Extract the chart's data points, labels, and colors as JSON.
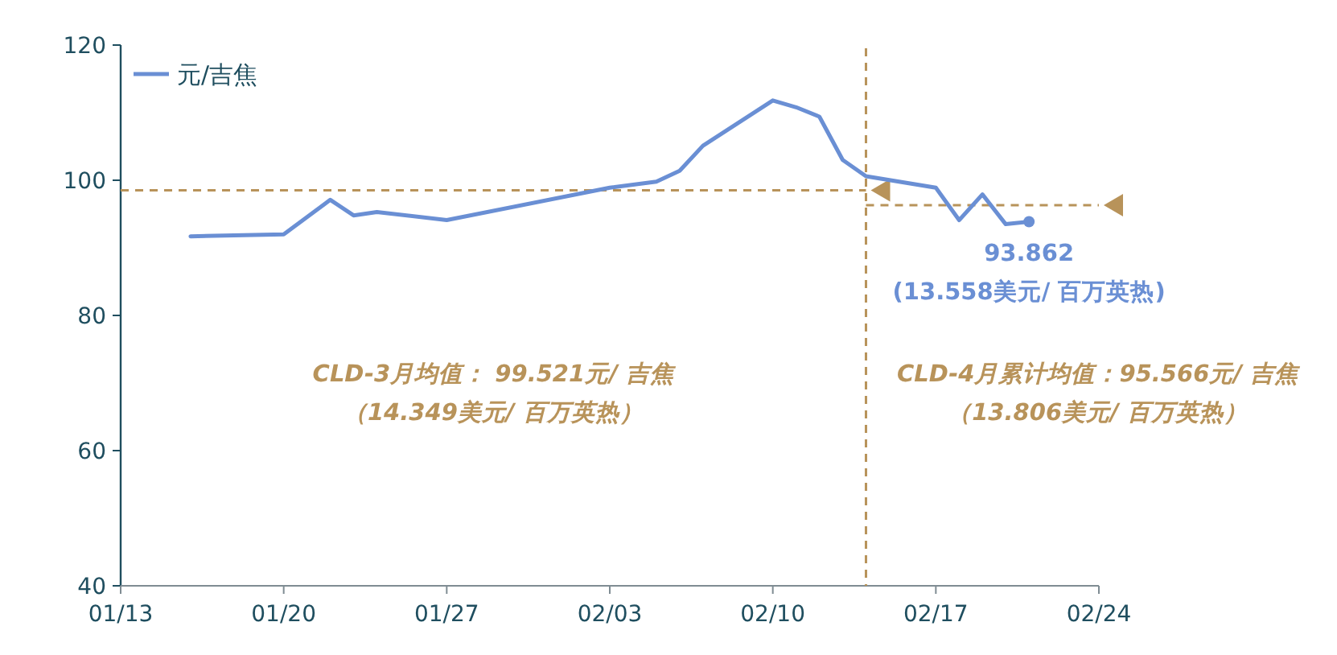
{
  "chart_data": {
    "type": "line",
    "legend": "top left",
    "marker": "none",
    "line_style": "solid",
    "grid": false,
    "x": [
      "--01-16",
      "--01-20",
      "--01-22",
      "--01-23",
      "--01-24",
      "--01-27",
      "--02-03",
      "--02-05",
      "--02-06",
      "--02-07",
      "--02-10",
      "--02-11",
      "--02-12",
      "--02-13",
      "--02-14",
      "--02-17",
      "--02-18",
      "--02-19",
      "--02-20",
      "--02-21"
    ],
    "series": [
      {
        "name": "元/吉焦",
        "color": "#6a8fd4",
        "values": [
          91.7,
          92.0,
          97.1,
          94.8,
          95.3,
          94.1,
          98.9,
          99.8,
          101.4,
          105.1,
          111.8,
          110.8,
          109.4,
          103.0,
          100.6,
          98.9,
          94.1,
          97.9,
          93.5,
          93.862
        ]
      }
    ],
    "xlim": [
      "--01-13",
      "--02-24"
    ],
    "xticks": [
      {
        "value": "--01-13",
        "label": "01/13"
      },
      {
        "value": "--01-20",
        "label": "01/20"
      },
      {
        "value": "--01-27",
        "label": "01/27"
      },
      {
        "value": "--02-03",
        "label": "02/03"
      },
      {
        "value": "--02-10",
        "label": "02/10"
      },
      {
        "value": "--02-17",
        "label": "02/17"
      },
      {
        "value": "--02-24",
        "label": "02/24"
      }
    ],
    "ylim": [
      40,
      120
    ],
    "yticks": [
      40,
      60,
      80,
      100,
      120
    ],
    "ref_lines": [
      {
        "axis": "x",
        "value": "--02-14",
        "color": "#b8935a",
        "line_style": "dashed"
      },
      {
        "axis": "y",
        "value": 98.5,
        "color": "#b8935a",
        "line_style": "dashed"
      },
      {
        "axis": "y",
        "value": 96.3,
        "color": "#b8935a",
        "line_style": "dashed"
      }
    ],
    "annotations": [
      "CLD-3月均值：  99.521元/ 吉焦",
      "（14.349美元/ 百万英热）",
      "CLD-4月累计均值：95.566元/ 吉焦",
      "（13.806美元/ 百万英热）",
      {
        "text": "93.862\n(13.558美元/ 百万英热)",
        "x": "--02-21",
        "y": 93.862
      }
    ]
  }
}
